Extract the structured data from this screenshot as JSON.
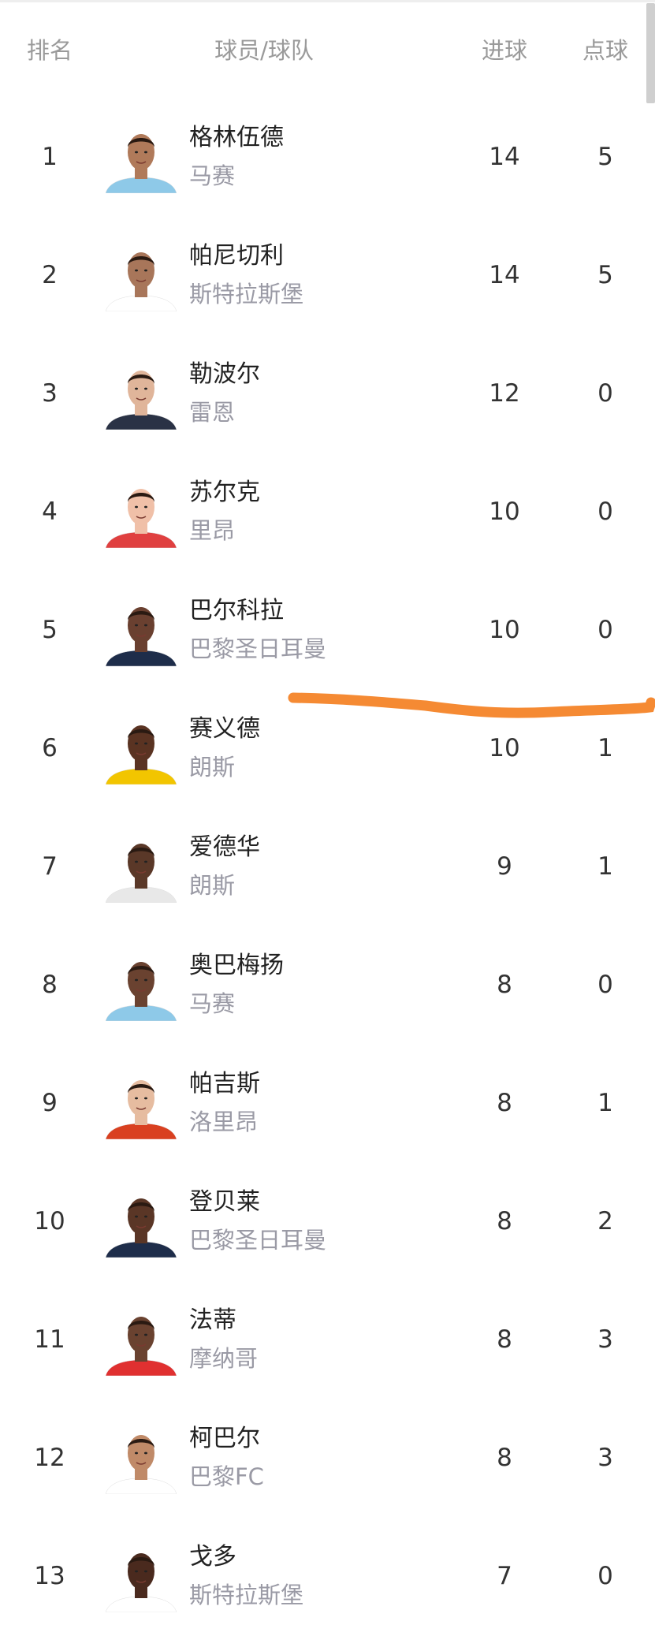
{
  "header": {
    "rank": "排名",
    "player_team": "球员/球队",
    "goals": "进球",
    "penalties": "点球"
  },
  "annotation_color": "#f58a33",
  "rows": [
    {
      "rank": "1",
      "name": "格林伍德",
      "team": "马赛",
      "goals": "14",
      "penalties": "5",
      "skin": "#b07a5a",
      "shirt": "#8ec9e8"
    },
    {
      "rank": "2",
      "name": "帕尼切利",
      "team": "斯特拉斯堡",
      "goals": "14",
      "penalties": "5",
      "skin": "#a8765a",
      "shirt": "#ffffff"
    },
    {
      "rank": "3",
      "name": "勒波尔",
      "team": "雷恩",
      "goals": "12",
      "penalties": "0",
      "skin": "#e0b59a",
      "shirt": "#2a3245"
    },
    {
      "rank": "4",
      "name": "苏尔克",
      "team": "里昂",
      "goals": "10",
      "penalties": "0",
      "skin": "#f0c0a8",
      "shirt": "#e04040"
    },
    {
      "rank": "5",
      "name": "巴尔科拉",
      "team": "巴黎圣日耳曼",
      "goals": "10",
      "penalties": "0",
      "skin": "#6a4030",
      "shirt": "#1e2d4a"
    },
    {
      "rank": "6",
      "name": "赛义德",
      "team": "朗斯",
      "goals": "10",
      "penalties": "1",
      "skin": "#5a3322",
      "shirt": "#f2c500"
    },
    {
      "rank": "7",
      "name": "爱德华",
      "team": "朗斯",
      "goals": "9",
      "penalties": "1",
      "skin": "#5a3828",
      "shirt": "#e8e8e8"
    },
    {
      "rank": "8",
      "name": "奥巴梅扬",
      "team": "马赛",
      "goals": "8",
      "penalties": "0",
      "skin": "#6a4230",
      "shirt": "#8ec9e8"
    },
    {
      "rank": "9",
      "name": "帕吉斯",
      "team": "洛里昂",
      "goals": "8",
      "penalties": "1",
      "skin": "#e6bca0",
      "shirt": "#d94020"
    },
    {
      "rank": "10",
      "name": "登贝莱",
      "team": "巴黎圣日耳曼",
      "goals": "8",
      "penalties": "2",
      "skin": "#5a3626",
      "shirt": "#1e2d4a"
    },
    {
      "rank": "11",
      "name": "法蒂",
      "team": "摩纳哥",
      "goals": "8",
      "penalties": "3",
      "skin": "#6a4230",
      "shirt": "#e03030"
    },
    {
      "rank": "12",
      "name": "柯巴尔",
      "team": "巴黎FC",
      "goals": "8",
      "penalties": "3",
      "skin": "#c08a68",
      "shirt": "#ffffff"
    },
    {
      "rank": "13",
      "name": "戈多",
      "team": "斯特拉斯堡",
      "goals": "7",
      "penalties": "0",
      "skin": "#4a2a1e",
      "shirt": "#ffffff"
    }
  ]
}
